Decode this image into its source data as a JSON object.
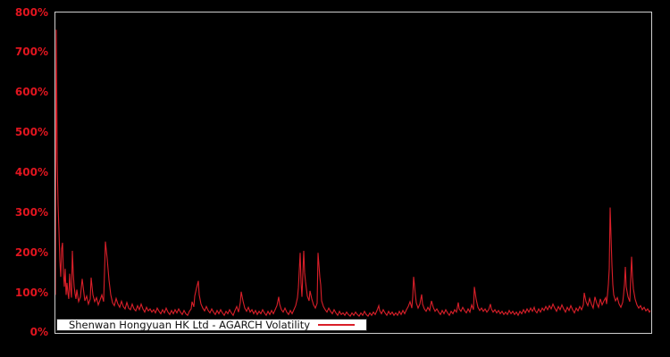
{
  "colors": {
    "accent_red": "#d91f29",
    "tick_red": "#e1151f",
    "plot_frame": "#cfcfcf",
    "background": "#000000",
    "legend_background": "#ffffff",
    "legend_text": "#111111"
  },
  "legend": {
    "label": "Shenwan Hongyuan HK Ltd - AGARCH Volatility"
  },
  "chart_data": {
    "type": "line",
    "title": "",
    "xlabel": "",
    "ylabel": "",
    "ylim": [
      0,
      800
    ],
    "grid": false,
    "legend_position": "bottom-left",
    "x_axis_labels_visible": false,
    "ytick_labels": [
      "0%",
      "100%",
      "200%",
      "300%",
      "400%",
      "500%",
      "600%",
      "700%",
      "800%"
    ],
    "series_name": "Shenwan Hongyuan HK Ltd - AGARCH Volatility",
    "line_color": "#d91f29",
    "points": [
      [
        0,
        95
      ],
      [
        1,
        757
      ],
      [
        2,
        430
      ],
      [
        3,
        320
      ],
      [
        4,
        255
      ],
      [
        5,
        180
      ],
      [
        6,
        140
      ],
      [
        7,
        210
      ],
      [
        8,
        225
      ],
      [
        9,
        150
      ],
      [
        10,
        115
      ],
      [
        11,
        160
      ],
      [
        12,
        95
      ],
      [
        13,
        125
      ],
      [
        14,
        100
      ],
      [
        15,
        85
      ],
      [
        16,
        148
      ],
      [
        17,
        110
      ],
      [
        18,
        88
      ],
      [
        19,
        205
      ],
      [
        20,
        150
      ],
      [
        21,
        115
      ],
      [
        22,
        98
      ],
      [
        23,
        85
      ],
      [
        24,
        108
      ],
      [
        25,
        92
      ],
      [
        26,
        78
      ],
      [
        28,
        90
      ],
      [
        30,
        135
      ],
      [
        32,
        98
      ],
      [
        33,
        80
      ],
      [
        35,
        92
      ],
      [
        37,
        72
      ],
      [
        39,
        85
      ],
      [
        40,
        138
      ],
      [
        42,
        95
      ],
      [
        44,
        78
      ],
      [
        46,
        88
      ],
      [
        48,
        70
      ],
      [
        50,
        82
      ],
      [
        52,
        95
      ],
      [
        54,
        78
      ],
      [
        56,
        228
      ],
      [
        58,
        185
      ],
      [
        60,
        132
      ],
      [
        62,
        95
      ],
      [
        64,
        75
      ],
      [
        66,
        68
      ],
      [
        68,
        86
      ],
      [
        70,
        72
      ],
      [
        72,
        64
      ],
      [
        74,
        79
      ],
      [
        76,
        66
      ],
      [
        78,
        60
      ],
      [
        80,
        76
      ],
      [
        82,
        62
      ],
      [
        84,
        58
      ],
      [
        86,
        72
      ],
      [
        88,
        60
      ],
      [
        90,
        55
      ],
      [
        92,
        68
      ],
      [
        94,
        58
      ],
      [
        96,
        72
      ],
      [
        98,
        60
      ],
      [
        100,
        52
      ],
      [
        102,
        64
      ],
      [
        104,
        55
      ],
      [
        106,
        60
      ],
      [
        108,
        52
      ],
      [
        110,
        58
      ],
      [
        112,
        50
      ],
      [
        114,
        62
      ],
      [
        116,
        54
      ],
      [
        118,
        48
      ],
      [
        120,
        58
      ],
      [
        122,
        50
      ],
      [
        124,
        62
      ],
      [
        126,
        52
      ],
      [
        128,
        46
      ],
      [
        130,
        56
      ],
      [
        132,
        48
      ],
      [
        134,
        58
      ],
      [
        136,
        50
      ],
      [
        138,
        60
      ],
      [
        140,
        52
      ],
      [
        142,
        46
      ],
      [
        144,
        56
      ],
      [
        146,
        48
      ],
      [
        148,
        44
      ],
      [
        150,
        54
      ],
      [
        152,
        60
      ],
      [
        153,
        78
      ],
      [
        155,
        65
      ],
      [
        156,
        92
      ],
      [
        158,
        112
      ],
      [
        160,
        130
      ],
      [
        161,
        95
      ],
      [
        163,
        72
      ],
      [
        165,
        62
      ],
      [
        167,
        55
      ],
      [
        169,
        66
      ],
      [
        171,
        56
      ],
      [
        173,
        50
      ],
      [
        175,
        60
      ],
      [
        177,
        52
      ],
      [
        179,
        46
      ],
      [
        181,
        56
      ],
      [
        183,
        48
      ],
      [
        185,
        58
      ],
      [
        187,
        50
      ],
      [
        189,
        44
      ],
      [
        191,
        54
      ],
      [
        193,
        48
      ],
      [
        195,
        58
      ],
      [
        197,
        50
      ],
      [
        199,
        44
      ],
      [
        201,
        56
      ],
      [
        203,
        66
      ],
      [
        205,
        52
      ],
      [
        207,
        76
      ],
      [
        208,
        103
      ],
      [
        210,
        80
      ],
      [
        212,
        62
      ],
      [
        214,
        54
      ],
      [
        216,
        64
      ],
      [
        218,
        52
      ],
      [
        220,
        58
      ],
      [
        222,
        48
      ],
      [
        224,
        56
      ],
      [
        226,
        46
      ],
      [
        228,
        54
      ],
      [
        230,
        48
      ],
      [
        232,
        58
      ],
      [
        234,
        50
      ],
      [
        236,
        44
      ],
      [
        238,
        54
      ],
      [
        240,
        46
      ],
      [
        242,
        56
      ],
      [
        244,
        48
      ],
      [
        246,
        58
      ],
      [
        248,
        68
      ],
      [
        250,
        90
      ],
      [
        251,
        72
      ],
      [
        253,
        58
      ],
      [
        255,
        52
      ],
      [
        257,
        62
      ],
      [
        259,
        52
      ],
      [
        261,
        46
      ],
      [
        263,
        56
      ],
      [
        265,
        48
      ],
      [
        267,
        58
      ],
      [
        269,
        68
      ],
      [
        271,
        88
      ],
      [
        272,
        112
      ],
      [
        274,
        200
      ],
      [
        275,
        125
      ],
      [
        276,
        90
      ],
      [
        278,
        205
      ],
      [
        279,
        150
      ],
      [
        280,
        128
      ],
      [
        282,
        92
      ],
      [
        284,
        80
      ],
      [
        285,
        105
      ],
      [
        287,
        85
      ],
      [
        289,
        70
      ],
      [
        291,
        62
      ],
      [
        293,
        74
      ],
      [
        294,
        200
      ],
      [
        296,
        140
      ],
      [
        297,
        120
      ],
      [
        298,
        80
      ],
      [
        300,
        66
      ],
      [
        302,
        58
      ],
      [
        304,
        52
      ],
      [
        306,
        62
      ],
      [
        308,
        54
      ],
      [
        310,
        48
      ],
      [
        312,
        58
      ],
      [
        314,
        50
      ],
      [
        316,
        44
      ],
      [
        318,
        54
      ],
      [
        320,
        46
      ],
      [
        322,
        50
      ],
      [
        324,
        44
      ],
      [
        326,
        52
      ],
      [
        328,
        46
      ],
      [
        330,
        42
      ],
      [
        332,
        50
      ],
      [
        334,
        44
      ],
      [
        336,
        52
      ],
      [
        338,
        46
      ],
      [
        340,
        42
      ],
      [
        342,
        50
      ],
      [
        344,
        44
      ],
      [
        346,
        54
      ],
      [
        348,
        46
      ],
      [
        350,
        42
      ],
      [
        352,
        50
      ],
      [
        354,
        44
      ],
      [
        356,
        52
      ],
      [
        358,
        46
      ],
      [
        360,
        56
      ],
      [
        362,
        68
      ],
      [
        363,
        56
      ],
      [
        365,
        48
      ],
      [
        367,
        58
      ],
      [
        369,
        50
      ],
      [
        371,
        44
      ],
      [
        373,
        54
      ],
      [
        375,
        46
      ],
      [
        377,
        52
      ],
      [
        379,
        44
      ],
      [
        381,
        50
      ],
      [
        383,
        44
      ],
      [
        385,
        54
      ],
      [
        387,
        46
      ],
      [
        389,
        56
      ],
      [
        391,
        48
      ],
      [
        393,
        58
      ],
      [
        395,
        66
      ],
      [
        397,
        78
      ],
      [
        399,
        62
      ],
      [
        400,
        90
      ],
      [
        401,
        140
      ],
      [
        403,
        95
      ],
      [
        404,
        75
      ],
      [
        406,
        62
      ],
      [
        408,
        72
      ],
      [
        410,
        96
      ],
      [
        411,
        72
      ],
      [
        413,
        60
      ],
      [
        415,
        54
      ],
      [
        417,
        64
      ],
      [
        419,
        56
      ],
      [
        421,
        80
      ],
      [
        423,
        64
      ],
      [
        425,
        54
      ],
      [
        427,
        60
      ],
      [
        429,
        52
      ],
      [
        431,
        46
      ],
      [
        433,
        56
      ],
      [
        435,
        48
      ],
      [
        437,
        58
      ],
      [
        439,
        50
      ],
      [
        441,
        44
      ],
      [
        443,
        54
      ],
      [
        445,
        48
      ],
      [
        447,
        58
      ],
      [
        449,
        52
      ],
      [
        451,
        76
      ],
      [
        452,
        60
      ],
      [
        454,
        54
      ],
      [
        456,
        64
      ],
      [
        458,
        56
      ],
      [
        460,
        50
      ],
      [
        462,
        60
      ],
      [
        464,
        52
      ],
      [
        466,
        70
      ],
      [
        468,
        58
      ],
      [
        469,
        115
      ],
      [
        471,
        84
      ],
      [
        473,
        64
      ],
      [
        475,
        56
      ],
      [
        477,
        62
      ],
      [
        479,
        54
      ],
      [
        481,
        60
      ],
      [
        483,
        52
      ],
      [
        485,
        58
      ],
      [
        487,
        72
      ],
      [
        488,
        60
      ],
      [
        490,
        52
      ],
      [
        492,
        58
      ],
      [
        494,
        50
      ],
      [
        496,
        56
      ],
      [
        498,
        48
      ],
      [
        500,
        54
      ],
      [
        502,
        46
      ],
      [
        504,
        52
      ],
      [
        506,
        46
      ],
      [
        508,
        56
      ],
      [
        510,
        48
      ],
      [
        512,
        54
      ],
      [
        514,
        46
      ],
      [
        516,
        52
      ],
      [
        518,
        44
      ],
      [
        520,
        54
      ],
      [
        522,
        48
      ],
      [
        524,
        58
      ],
      [
        526,
        50
      ],
      [
        528,
        60
      ],
      [
        530,
        52
      ],
      [
        532,
        62
      ],
      [
        534,
        54
      ],
      [
        536,
        64
      ],
      [
        537,
        56
      ],
      [
        539,
        50
      ],
      [
        541,
        60
      ],
      [
        543,
        52
      ],
      [
        545,
        62
      ],
      [
        547,
        56
      ],
      [
        549,
        66
      ],
      [
        551,
        58
      ],
      [
        553,
        68
      ],
      [
        555,
        60
      ],
      [
        557,
        72
      ],
      [
        559,
        62
      ],
      [
        561,
        54
      ],
      [
        563,
        66
      ],
      [
        565,
        58
      ],
      [
        567,
        70
      ],
      [
        569,
        60
      ],
      [
        571,
        52
      ],
      [
        573,
        64
      ],
      [
        575,
        56
      ],
      [
        577,
        68
      ],
      [
        579,
        58
      ],
      [
        581,
        50
      ],
      [
        583,
        62
      ],
      [
        585,
        55
      ],
      [
        587,
        66
      ],
      [
        589,
        58
      ],
      [
        591,
        70
      ],
      [
        592,
        100
      ],
      [
        594,
        78
      ],
      [
        596,
        68
      ],
      [
        598,
        86
      ],
      [
        600,
        72
      ],
      [
        602,
        62
      ],
      [
        604,
        90
      ],
      [
        606,
        74
      ],
      [
        608,
        64
      ],
      [
        610,
        85
      ],
      [
        612,
        70
      ],
      [
        614,
        80
      ],
      [
        616,
        88
      ],
      [
        617,
        72
      ],
      [
        618,
        95
      ],
      [
        619,
        120
      ],
      [
        620,
        160
      ],
      [
        621,
        313
      ],
      [
        622,
        240
      ],
      [
        623,
        170
      ],
      [
        624,
        120
      ],
      [
        625,
        95
      ],
      [
        627,
        80
      ],
      [
        629,
        88
      ],
      [
        631,
        72
      ],
      [
        633,
        64
      ],
      [
        635,
        76
      ],
      [
        636,
        95
      ],
      [
        637,
        120
      ],
      [
        638,
        165
      ],
      [
        639,
        115
      ],
      [
        641,
        90
      ],
      [
        643,
        78
      ],
      [
        645,
        190
      ],
      [
        646,
        140
      ],
      [
        647,
        110
      ],
      [
        649,
        84
      ],
      [
        651,
        70
      ],
      [
        653,
        62
      ],
      [
        655,
        68
      ],
      [
        657,
        58
      ],
      [
        659,
        64
      ],
      [
        661,
        55
      ],
      [
        663,
        60
      ],
      [
        665,
        52
      ],
      [
        666,
        56
      ]
    ]
  }
}
